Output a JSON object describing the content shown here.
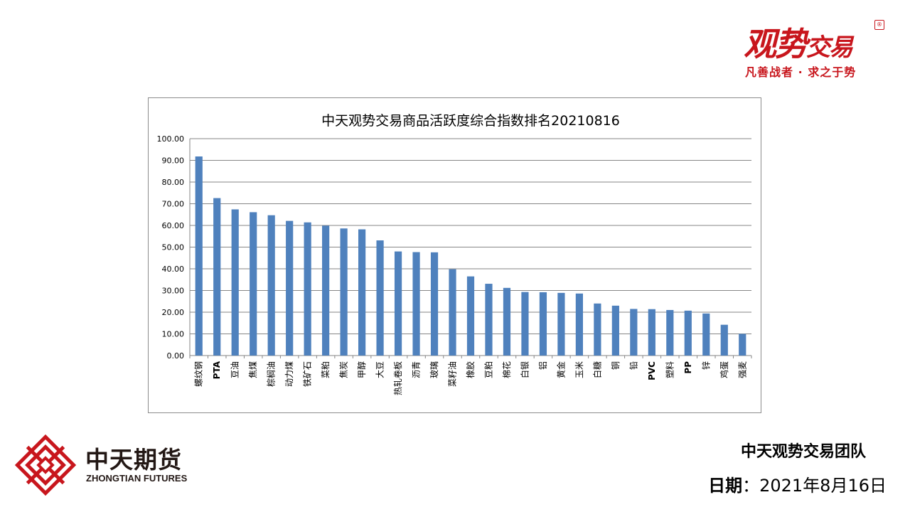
{
  "brand": {
    "name_main": "观势",
    "name_rest": "交易",
    "seal": "®",
    "slogan": "凡善战者 · 求之于势"
  },
  "company": {
    "name_cn": "中天期货",
    "name_en": "ZHONGTIAN FUTURES"
  },
  "footer": {
    "team": "中天观势交易团队",
    "date_label": "日期",
    "date_sep": "：",
    "date_value": "2021年8月16日"
  },
  "colors": {
    "bar": "#4f81bd",
    "brand_red": "#c8161d",
    "gridline": "#868686"
  },
  "chart_data": {
    "type": "bar",
    "title": "中天观势交易商品活跃度综合指数排名20210816",
    "xlabel": "",
    "ylabel": "",
    "ylim": [
      0,
      100
    ],
    "yticks": [
      "0.00",
      "10.00",
      "20.00",
      "30.00",
      "40.00",
      "50.00",
      "60.00",
      "70.00",
      "80.00",
      "90.00",
      "100.00"
    ],
    "grid": true,
    "legend": "none",
    "categories": [
      "螺纹钢",
      "PTA",
      "豆油",
      "焦煤",
      "棕榈油",
      "动力煤",
      "铁矿石",
      "菜粕",
      "焦炭",
      "甲醇",
      "大豆",
      "热轧卷板",
      "沥青",
      "玻璃",
      "菜籽油",
      "橡胶",
      "豆粕",
      "棉花",
      "白银",
      "铝",
      "黄金",
      "玉米",
      "白糖",
      "铜",
      "铅",
      "PVC",
      "塑料",
      "PP",
      "锌",
      "鸡蛋",
      "强麦"
    ],
    "values": [
      91.8,
      72.6,
      67.4,
      66.1,
      64.7,
      62.1,
      61.4,
      59.9,
      58.6,
      58.2,
      53.1,
      48.0,
      47.7,
      47.6,
      39.8,
      36.5,
      33.1,
      31.2,
      29.3,
      29.2,
      28.9,
      28.6,
      24.0,
      23.0,
      21.5,
      21.4,
      21.0,
      20.7,
      19.4,
      14.2,
      10.0
    ]
  }
}
